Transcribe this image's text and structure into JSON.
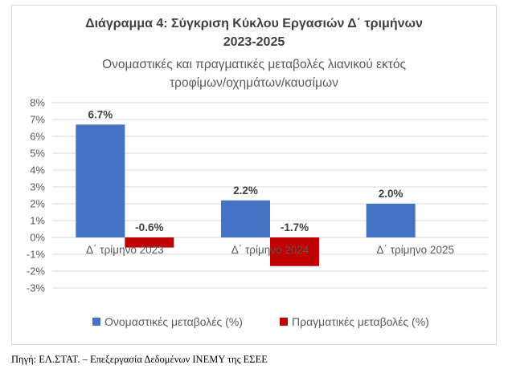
{
  "colors": {
    "nominal": "#4472C4",
    "real": "#C00000",
    "grid": "#d9d9d9",
    "text": "#595959",
    "title": "#404040"
  },
  "chart_data": {
    "type": "bar",
    "title": "Διάγραμμα 4: Σύγκριση Κύκλου Εργασιών Δ΄ τριμήνων 2023-2025",
    "title_lines": [
      "Διάγραμμα 4: Σύγκριση Κύκλου Εργασιών Δ΄ τριμήνων",
      "2023-2025"
    ],
    "subtitle": "Ονομαστικές και πραγματικές μεταβολές λιανικού εκτός τροφίμων/οχημάτων/καυσίμων",
    "subtitle_lines": [
      "Ονομαστικές και πραγματικές μεταβολές λιανικού εκτός",
      "τροφίμων/οχημάτων/καυσίμων"
    ],
    "categories": [
      "Δ΄ τρίμηνο 2023",
      "Δ΄ τρίμηνο 2024",
      "Δ΄ τρίμηνο 2025"
    ],
    "series": [
      {
        "name": "Ονομαστικές μεταβολές (%)",
        "values": [
          6.7,
          2.2,
          2.0
        ],
        "labels": [
          "6.7%",
          "2.2%",
          "2.0%"
        ]
      },
      {
        "name": "Πραγματικές μεταβολές (%)",
        "values": [
          -0.6,
          -1.7,
          null
        ],
        "labels": [
          "-0.6%",
          "-1.7%",
          ""
        ]
      }
    ],
    "ylim": [
      -3,
      8
    ],
    "yticks": [
      "8%",
      "7%",
      "6%",
      "5%",
      "4%",
      "3%",
      "2%",
      "1%",
      "0%",
      "-1%",
      "-2%",
      "-3%"
    ],
    "grid": true,
    "legend_position": "bottom"
  },
  "source": "Πηγή: ΕΛ.ΣΤΑΤ. – Επεξεργασία Δεδομένων ΙΝΕΜΥ της ΕΣΕΕ"
}
